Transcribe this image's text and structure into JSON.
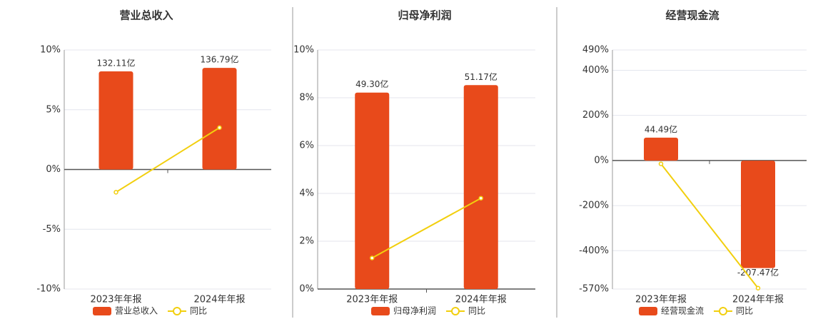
{
  "chart_data": [
    {
      "type": "bar",
      "title": "营业总收入",
      "categories": [
        "2023年年报",
        "2024年年报"
      ],
      "series": [
        {
          "name": "营业总收入",
          "color": "#e84a1b",
          "type": "bar",
          "axis": "y2",
          "values": [
            132.11,
            136.79
          ],
          "value_labels": [
            "132.11亿",
            "136.79亿"
          ]
        },
        {
          "name": "同比",
          "color": "#f2cf0e",
          "type": "line",
          "values": [
            -1.9,
            3.5
          ]
        }
      ],
      "ylim": [
        -10,
        10
      ],
      "yticks": [
        {
          "value": 10,
          "label": "10%"
        },
        {
          "value": 5,
          "label": "5%"
        },
        {
          "value": 0,
          "label": "0%"
        },
        {
          "value": -5,
          "label": "-5%"
        },
        {
          "value": -10,
          "label": "-10%"
        }
      ],
      "y2lim": [
        -161,
        161
      ],
      "grid": true
    },
    {
      "type": "bar",
      "title": "归母净利润",
      "categories": [
        "2023年年报",
        "2024年年报"
      ],
      "series": [
        {
          "name": "归母净利润",
          "color": "#e84a1b",
          "type": "bar",
          "axis": "y2",
          "values": [
            49.3,
            51.17
          ],
          "value_labels": [
            "49.30亿",
            "51.17亿"
          ]
        },
        {
          "name": "同比",
          "color": "#f2cf0e",
          "type": "line",
          "values": [
            1.3,
            3.8
          ]
        }
      ],
      "ylim": [
        0,
        10
      ],
      "yticks": [
        {
          "value": 10,
          "label": "10%"
        },
        {
          "value": 8,
          "label": "8%"
        },
        {
          "value": 6,
          "label": "6%"
        },
        {
          "value": 4,
          "label": "4%"
        },
        {
          "value": 2,
          "label": "2%"
        },
        {
          "value": 0,
          "label": "0%"
        }
      ],
      "y2lim": [
        0,
        60
      ],
      "grid": true
    },
    {
      "type": "bar",
      "title": "经营现金流",
      "categories": [
        "2023年年报",
        "2024年年报"
      ],
      "series": [
        {
          "name": "经营现金流",
          "color": "#e84a1b",
          "type": "bar",
          "axis": "y2",
          "values": [
            44.49,
            -207.47
          ],
          "value_labels": [
            "44.49亿",
            "-207.47亿"
          ]
        },
        {
          "name": "同比",
          "color": "#f2cf0e",
          "type": "line",
          "values": [
            -15,
            -566
          ]
        }
      ],
      "ylim": [
        -570,
        490
      ],
      "yticks": [
        {
          "value": 490,
          "label": "490%"
        },
        {
          "value": 400,
          "label": "400%"
        },
        {
          "value": 200,
          "label": "200%"
        },
        {
          "value": 0,
          "label": "0%"
        },
        {
          "value": -200,
          "label": "-200%"
        },
        {
          "value": -400,
          "label": "-400%"
        },
        {
          "value": -570,
          "label": "-570%"
        }
      ],
      "y2lim": [
        -248,
        214
      ],
      "grid": true
    }
  ]
}
